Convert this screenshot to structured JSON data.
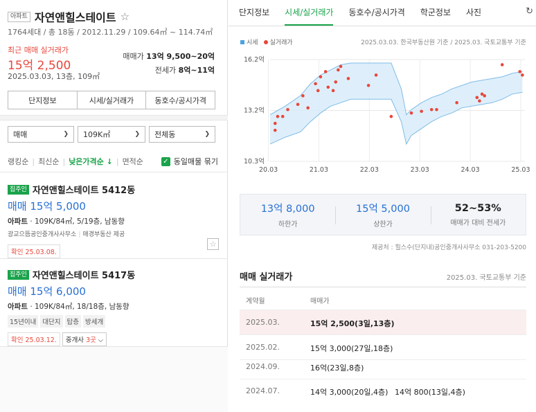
{
  "complex": {
    "type_tag": "아파트",
    "name": "자연앤힐스테이트",
    "info": "1764세대 / 총 18동 / 2012.11.29 / 109.64㎡ ~ 114.74㎡",
    "recent_label": "최근 매매 실거래가",
    "recent_price": "15억 2,500",
    "recent_meta": "2025.03.03, 13층, 109㎡",
    "sale_range_label": "매매가",
    "sale_range": "13억 9,500~20억",
    "jeonse_range_label": "전세가",
    "jeonse_range": "8억~11억"
  },
  "info_buttons": [
    "단지정보",
    "시세/실거래가",
    "동호수/공시가격"
  ],
  "filters": {
    "trade_type": "매매",
    "size": "109K㎡",
    "dong": "전체동"
  },
  "sort": {
    "options": [
      "랭킹순",
      "최신순",
      "낮은가격순 ↓",
      "면적순"
    ],
    "active_index": 2,
    "group_label": "동일매물 묶기"
  },
  "listings": [
    {
      "badge": "집주인",
      "name": "자연앤힐스테이트 5412동",
      "price": "매매 15억 5,000",
      "desc_type": "아파트",
      "desc": "109K/84㎡, 5/19층, 남동향",
      "agent": "광교으뜸공인중개사사무소",
      "provider": "매경부동산 제공",
      "tags": [],
      "confirmed": "확인 25.03.08.",
      "agent_count": ""
    },
    {
      "badge": "집주인",
      "name": "자연앤힐스테이트 5417동",
      "price": "매매 15억 6,000",
      "desc_type": "아파트",
      "desc": "109K/84㎡, 18/18층, 남동향",
      "agent": "",
      "provider": "",
      "tags": [
        "15년이내",
        "대단지",
        "탑층",
        "방세개"
      ],
      "confirmed": "확인 25.03.12.",
      "agent_count_prefix": "중개사",
      "agent_count": "3곳"
    }
  ],
  "tabs": [
    "단지정보",
    "시세/실거래가",
    "동호수/공시가격",
    "학군정보",
    "사진"
  ],
  "active_tab": 1,
  "legend": {
    "price": "시세",
    "actual": "실거래가"
  },
  "chart_source": "2025.03.03. 한국부동산원 기준 / 2025.03. 국토교통부 기준",
  "chart_data": {
    "type": "area",
    "title": "",
    "xlabel": "",
    "ylabel": "",
    "x_ticks": [
      "20.03",
      "21.03",
      "22.03",
      "23.03",
      "24.03",
      "25.03"
    ],
    "y_ticks": [
      "16.2억",
      "13.2억",
      "10.3억"
    ],
    "ylim": [
      10.3,
      16.2
    ],
    "xlim": [
      2020.2,
      2025.25
    ],
    "grid": true,
    "series": [
      {
        "name": "시세",
        "kind": "band",
        "x": [
          2020.2,
          2020.5,
          2020.8,
          2021.0,
          2021.2,
          2021.4,
          2021.6,
          2021.8,
          2022.0,
          2022.2,
          2022.4,
          2022.6,
          2022.8,
          2022.9,
          2023.0,
          2023.2,
          2023.4,
          2023.6,
          2023.8,
          2024.0,
          2024.2,
          2024.4,
          2024.6,
          2024.8,
          2025.0,
          2025.2
        ],
        "low": [
          11.3,
          11.7,
          12.0,
          12.6,
          13.1,
          13.5,
          13.7,
          13.9,
          13.9,
          13.9,
          13.9,
          13.9,
          12.6,
          11.3,
          11.8,
          12.2,
          12.6,
          12.9,
          13.1,
          13.4,
          13.5,
          13.6,
          13.7,
          13.9,
          14.2,
          14.3
        ],
        "high": [
          13.0,
          13.5,
          14.1,
          14.8,
          15.3,
          15.6,
          15.9,
          16.0,
          16.0,
          16.0,
          16.0,
          16.0,
          14.5,
          13.0,
          13.3,
          13.7,
          14.0,
          14.2,
          14.5,
          14.7,
          14.9,
          15.0,
          15.1,
          15.2,
          15.4,
          15.5
        ]
      },
      {
        "name": "실거래가",
        "kind": "scatter",
        "points": [
          [
            2020.3,
            12.5
          ],
          [
            2020.3,
            12.1
          ],
          [
            2020.35,
            12.9
          ],
          [
            2020.45,
            12.9
          ],
          [
            2020.55,
            13.3
          ],
          [
            2020.75,
            13.6
          ],
          [
            2020.85,
            14.1
          ],
          [
            2020.95,
            13.4
          ],
          [
            2021.1,
            14.8
          ],
          [
            2021.15,
            14.4
          ],
          [
            2021.2,
            15.2
          ],
          [
            2021.3,
            15.5
          ],
          [
            2021.35,
            14.6
          ],
          [
            2021.45,
            14.4
          ],
          [
            2021.5,
            14.9
          ],
          [
            2021.55,
            15.6
          ],
          [
            2021.6,
            15.8
          ],
          [
            2021.75,
            15.1
          ],
          [
            2022.15,
            14.7
          ],
          [
            2022.3,
            15.3
          ],
          [
            2022.6,
            12.9
          ],
          [
            2023.0,
            13.1
          ],
          [
            2023.2,
            13.2
          ],
          [
            2023.4,
            13.3
          ],
          [
            2023.5,
            13.3
          ],
          [
            2023.9,
            13.7
          ],
          [
            2024.3,
            14.0
          ],
          [
            2024.35,
            13.8
          ],
          [
            2024.4,
            14.2
          ],
          [
            2024.45,
            14.1
          ],
          [
            2024.8,
            15.9
          ],
          [
            2025.15,
            15.5
          ],
          [
            2025.2,
            15.3
          ]
        ]
      }
    ]
  },
  "stats": [
    {
      "value": "13억 8,000",
      "label": "하한가"
    },
    {
      "value": "15억 5,000",
      "label": "상한가"
    },
    {
      "value": "52~53%",
      "label": "매매가 대비 전세가"
    }
  ],
  "provider": "제공처 : 힐스수(단지내)공인중개사사무소 031-203-5200",
  "transactions": {
    "title": "매매 실거래가",
    "source": "2025.03. 국토교통부 기준",
    "headers": [
      "계약월",
      "매매가"
    ],
    "rows": [
      {
        "date": "2025.03.",
        "price": "15억 2,500(3일,13층)",
        "price2": ""
      },
      {
        "date": "2025.02.",
        "price": "15억 3,000(27일,18층)",
        "price2": ""
      },
      {
        "date": "2024.09.",
        "price": "16억(23일,8층)",
        "price2": ""
      },
      {
        "date": "2024.07.",
        "price": "14억 3,000(20일,4층)",
        "price2": "14억 800(13일,4층)"
      }
    ]
  }
}
